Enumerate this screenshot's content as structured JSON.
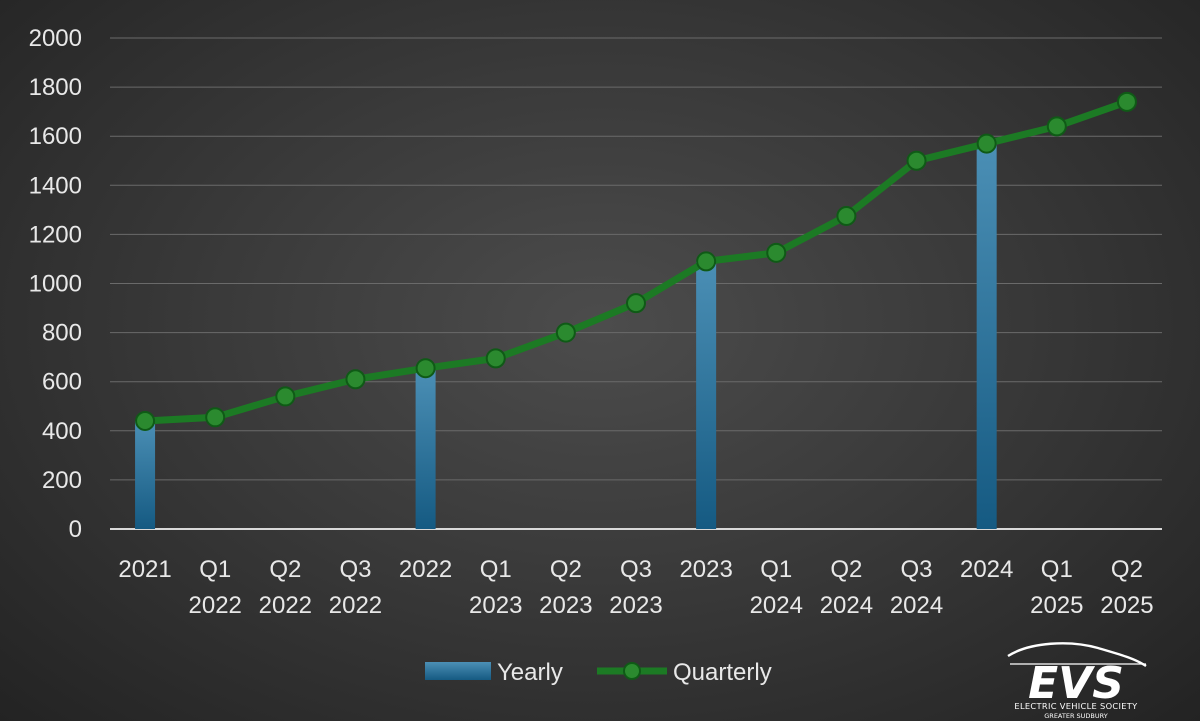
{
  "chart_data": {
    "type": "bar",
    "categories": [
      [
        "2021"
      ],
      [
        "Q1",
        "2022"
      ],
      [
        "Q2",
        "2022"
      ],
      [
        "Q3",
        "2022"
      ],
      [
        "2022"
      ],
      [
        "Q1",
        "2023"
      ],
      [
        "Q2",
        "2023"
      ],
      [
        "Q3",
        "2023"
      ],
      [
        "2023"
      ],
      [
        "Q1",
        "2024"
      ],
      [
        "Q2",
        "2024"
      ],
      [
        "Q3",
        "2024"
      ],
      [
        "2024"
      ],
      [
        "Q1",
        "2025"
      ],
      [
        "Q2",
        "2025"
      ]
    ],
    "series": [
      {
        "name": "Yearly",
        "type": "bar",
        "color": "#1f6a96",
        "values": [
          440,
          null,
          null,
          null,
          650,
          null,
          null,
          null,
          1090,
          null,
          null,
          null,
          1570,
          null,
          null
        ]
      },
      {
        "name": "Quarterly",
        "type": "line",
        "color": "#1e7a25",
        "values": [
          440,
          455,
          540,
          610,
          655,
          695,
          800,
          920,
          1090,
          1125,
          1275,
          1500,
          1570,
          1640,
          1740
        ]
      }
    ],
    "ylim": [
      0,
      2000
    ],
    "yticks": [
      0,
      200,
      400,
      600,
      800,
      1000,
      1200,
      1400,
      1600,
      1800,
      2000
    ],
    "grid": true,
    "legend": "bottom",
    "title": "",
    "xlabel": "",
    "ylabel": ""
  },
  "logo": {
    "text": "EVS",
    "line1": "ELECTRIC VEHICLE SOCIETY",
    "line2": "GREATER SUDBURY"
  }
}
